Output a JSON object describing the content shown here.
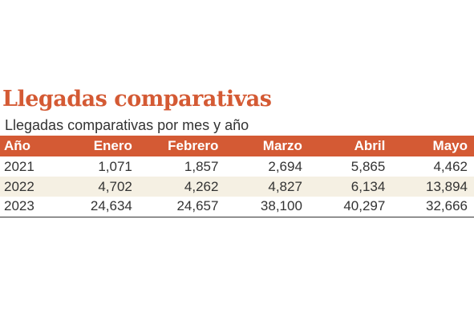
{
  "title": "Llegadas comparativas",
  "subtitle": "Llegadas comparativas por mes y año",
  "colors": {
    "accent": "#d45a34",
    "stripe": "#f5f0e3"
  },
  "chart_data": {
    "type": "table",
    "title": "Llegadas comparativas",
    "subtitle": "Llegadas comparativas por mes y año",
    "columns": [
      "Año",
      "Enero",
      "Febrero",
      "Marzo",
      "Abril",
      "Mayo"
    ],
    "rows": [
      [
        "2021",
        "1,071",
        "1,857",
        "2,694",
        "5,865",
        "4,462"
      ],
      [
        "2022",
        "4,702",
        "4,262",
        "4,827",
        "6,134",
        "13,894"
      ],
      [
        "2023",
        "24,634",
        "24,657",
        "38,100",
        "40,297",
        "32,666"
      ]
    ]
  }
}
